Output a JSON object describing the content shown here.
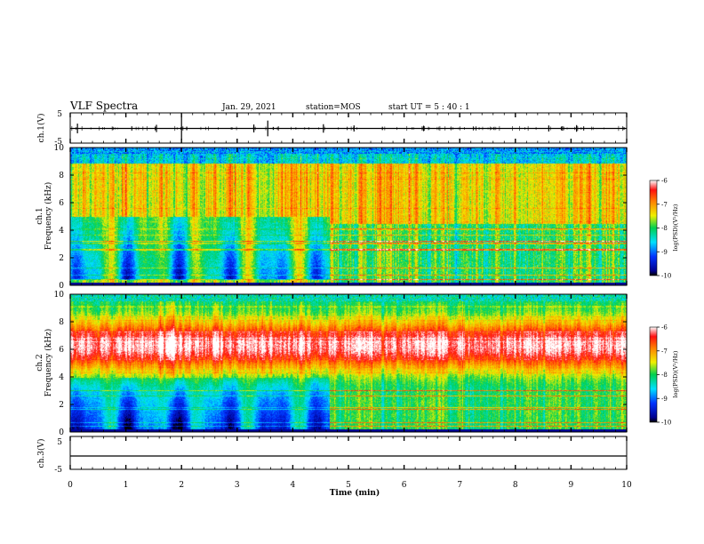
{
  "header": {
    "title": "VLF Spectra",
    "date": "Jan. 29, 2021",
    "station": "station=MOS",
    "start": "start UT =  5 : 40 : 1"
  },
  "chart_data": [
    {
      "type": "line",
      "panel": "ch1-waveform",
      "ylabel": "ch.1(V)",
      "ylim": [
        -5,
        5
      ],
      "yticks": [
        "5",
        "-5"
      ],
      "baseline": 0,
      "spikes": [
        {
          "x": 0.13,
          "v": 1.6
        },
        {
          "x": 1.55,
          "v": 1.2
        },
        {
          "x": 2.0,
          "v": 3.8
        },
        {
          "x": 3.3,
          "v": 1.3
        },
        {
          "x": 3.55,
          "v": 2.6
        },
        {
          "x": 4.55,
          "v": 1.4
        },
        {
          "x": 5.1,
          "v": 1.0
        },
        {
          "x": 6.35,
          "v": 0.9
        },
        {
          "x": 8.6,
          "v": 1.0
        },
        {
          "x": 9.1,
          "v": 1.1
        }
      ]
    },
    {
      "type": "heatmap",
      "panel": "ch1-spectrogram",
      "ylabel": "ch.1\nFrequency (kHz)",
      "ylim": [
        0,
        10
      ],
      "yticks": [
        "0",
        "2",
        "4",
        "6",
        "8",
        "10"
      ],
      "colorbar": {
        "label": "log(PSD)(V²/Hz)",
        "range": [
          -10,
          -6
        ],
        "ticks": [
          "-6",
          "-7",
          "-8",
          "-9",
          "-10"
        ]
      }
    },
    {
      "type": "heatmap",
      "panel": "ch2-spectrogram",
      "ylabel": "ch.2\nFrequency (kHz)",
      "ylim": [
        0,
        10
      ],
      "yticks": [
        "0",
        "2",
        "4",
        "6",
        "8",
        "10"
      ],
      "colorbar": {
        "label": "log(PSD)(V²/Hz)",
        "range": [
          -10,
          -6
        ],
        "ticks": [
          "-6",
          "-7",
          "-8",
          "-9",
          "-10"
        ]
      }
    },
    {
      "type": "line",
      "panel": "ch3-waveform",
      "ylabel": "ch.3(V)",
      "ylim": [
        -5,
        5
      ],
      "yticks": [
        "5",
        "-5"
      ],
      "baseline": 0,
      "xlabel": "Time (min)",
      "xlim": [
        0,
        10
      ],
      "xticks": [
        "0",
        "1",
        "2",
        "3",
        "4",
        "5",
        "6",
        "7",
        "8",
        "9",
        "10"
      ]
    }
  ]
}
